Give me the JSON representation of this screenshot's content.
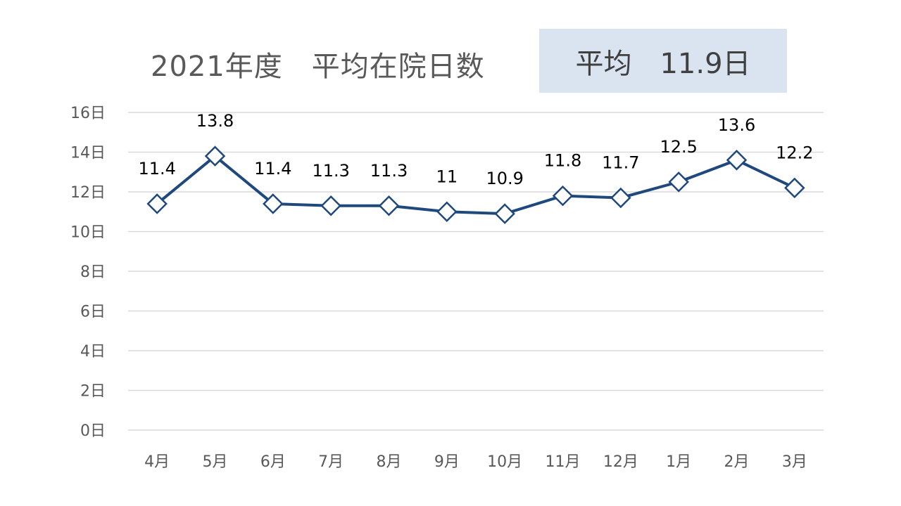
{
  "chart_data": {
    "type": "line",
    "title": "2021年度　平均在院日数",
    "summary": "平均　11.9日",
    "categories": [
      "4月",
      "5月",
      "6月",
      "7月",
      "8月",
      "9月",
      "10月",
      "11月",
      "12月",
      "1月",
      "2月",
      "3月"
    ],
    "series": [
      {
        "values": [
          11.4,
          13.8,
          11.4,
          11.3,
          11.3,
          11,
          10.9,
          11.8,
          11.7,
          12.5,
          13.6,
          12.2
        ],
        "labels": [
          "11.4",
          "13.8",
          "11.4",
          "11.3",
          "11.3",
          "11",
          "10.9",
          "11.8",
          "11.7",
          "12.5",
          "13.6",
          "12.2"
        ]
      }
    ],
    "ylim": [
      0,
      16
    ],
    "yticks": [
      0,
      2,
      4,
      6,
      8,
      10,
      12,
      14,
      16
    ],
    "ytick_labels": [
      "0日",
      "2日",
      "4日",
      "6日",
      "8日",
      "10日",
      "12日",
      "14日",
      "16日"
    ],
    "xlabel": "",
    "ylabel": "",
    "grid": true,
    "marker": "diamond",
    "line_color": "#1f497d",
    "summary_box_color": "#dae3f0",
    "gridline_color": "#d9d9d9"
  }
}
